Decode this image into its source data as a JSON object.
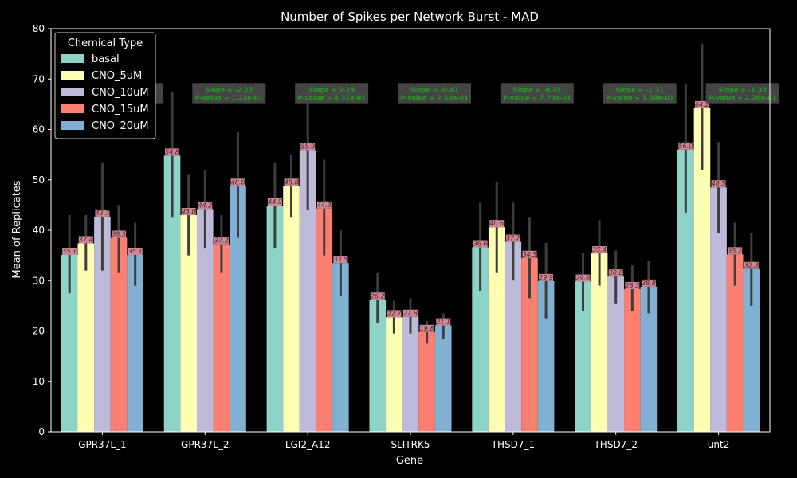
{
  "chart_data": {
    "type": "bar",
    "title": "Number of Spikes per Network Burst - MAD",
    "xlabel": "Gene",
    "ylabel": "Mean of Replicates",
    "ylim": [
      0,
      80
    ],
    "yticks": [
      0,
      10,
      20,
      30,
      40,
      50,
      60,
      70,
      80
    ],
    "grid": false,
    "categories": [
      "GPR37L_1",
      "GPR37L_2",
      "LGI2_A12",
      "SLITRK5",
      "THSD7_1",
      "THSD7_2",
      "unt2"
    ],
    "legend": {
      "title": "Chemical Type",
      "placement": "top-left"
    },
    "series": [
      {
        "name": "basal",
        "color": "#8dd3c7",
        "values": [
          35.1,
          54.8,
          44.9,
          26.2,
          36.6,
          29.8,
          56.0
        ],
        "labels": [
          "35.1",
          "54.8",
          "44.9",
          "26.2",
          "36.6",
          "29.8",
          "56.0"
        ],
        "err_low": [
          27.5,
          42.5,
          36.5,
          21.5,
          28.0,
          24.0,
          43.5
        ],
        "err_high": [
          43.0,
          67.5,
          53.5,
          31.5,
          45.5,
          35.5,
          69.0
        ]
      },
      {
        "name": "CNO_5uM",
        "color": "#ffffb3",
        "values": [
          37.4,
          43.0,
          48.8,
          22.7,
          40.6,
          35.4,
          64.2
        ],
        "labels": [
          "37.4",
          "43.0",
          "48.8",
          "22.7",
          "40.6",
          "35.4",
          "64.2"
        ],
        "err_low": [
          32.0,
          35.0,
          42.5,
          19.5,
          31.5,
          29.0,
          52.0
        ],
        "err_high": [
          43.0,
          51.0,
          55.0,
          26.0,
          49.5,
          42.0,
          77.0
        ]
      },
      {
        "name": "CNO_10uM",
        "color": "#bebada",
        "values": [
          42.7,
          44.2,
          55.9,
          22.8,
          37.7,
          30.8,
          48.5
        ],
        "labels": [
          "42.7",
          "44.2",
          "55.9",
          "22.8",
          "37.7",
          "30.8",
          "48.5"
        ],
        "err_low": [
          32.0,
          36.5,
          44.0,
          19.5,
          30.0,
          25.5,
          39.5
        ],
        "err_high": [
          53.5,
          52.0,
          68.0,
          26.5,
          45.5,
          36.0,
          57.5
        ]
      },
      {
        "name": "CNO_15uM",
        "color": "#fb8072",
        "values": [
          38.5,
          37.2,
          44.3,
          19.8,
          34.5,
          28.3,
          35.2
        ],
        "labels": [
          "38.5",
          "37.2",
          "44.3",
          "19.8",
          "34.5",
          "28.3",
          "35.2"
        ],
        "err_low": [
          31.5,
          31.5,
          35.0,
          17.5,
          26.5,
          24.0,
          29.0
        ],
        "err_high": [
          45.0,
          43.0,
          54.0,
          22.0,
          42.5,
          33.0,
          41.5
        ]
      },
      {
        "name": "CNO_20uM",
        "color": "#80b1d3",
        "values": [
          35.1,
          48.8,
          33.5,
          21.1,
          29.9,
          28.8,
          32.3
        ],
        "labels": [
          "35.1",
          "48.8",
          "33.5",
          "21.1",
          "29.9",
          "28.8",
          "32.3"
        ],
        "err_low": [
          29.0,
          38.5,
          27.0,
          18.5,
          22.5,
          23.5,
          25.0
        ],
        "err_high": [
          41.5,
          59.5,
          40.0,
          23.5,
          37.5,
          34.0,
          39.5
        ]
      }
    ],
    "annotations": [
      {
        "category": "GPR37L_1",
        "lines": [
          "",
          ""
        ]
      },
      {
        "category": "GPR37L_2",
        "lines": [
          "Slope = -2.27",
          "P-value = 1.23e-01"
        ]
      },
      {
        "category": "LGI2_A12",
        "lines": [
          "Slope = 0.28",
          "P-value = 8.31e-01"
        ]
      },
      {
        "category": "SLITRK5",
        "lines": [
          "Slope = -0.41",
          "P-value = 2.33e-01"
        ]
      },
      {
        "category": "THSD7_1",
        "lines": [
          "Slope = -0.32",
          "P-value = 7.79e-01"
        ]
      },
      {
        "category": "THSD7_2",
        "lines": [
          "Slope = -1.11",
          "P-value = 1.38e-01"
        ]
      },
      {
        "category": "unt2",
        "lines": [
          "Slope = -1.33",
          "P-value = 2.26e-01"
        ]
      }
    ],
    "colors": {
      "background": "#000000",
      "axes": "#ffffff",
      "errorbar": "#3d3d3d",
      "value_label_bg": "#c98a94",
      "value_label_text": "#5a1a2a",
      "annotation_bg": "#444444",
      "annotation_text": "#1f9f1f"
    }
  }
}
